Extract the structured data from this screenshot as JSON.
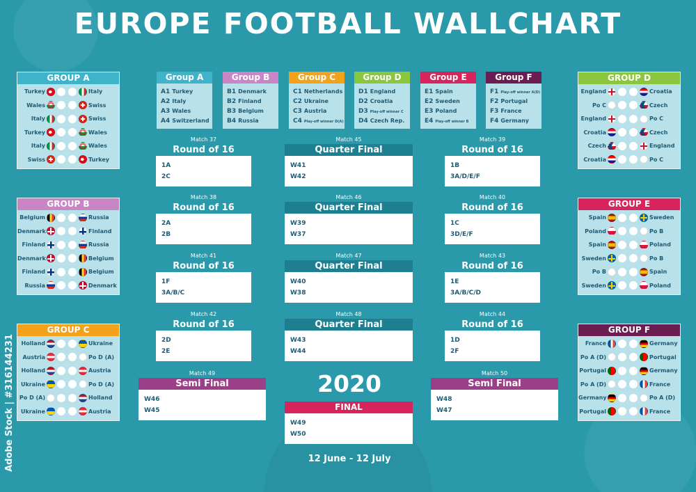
{
  "title": "EUROPE FOOTBALL WALLCHART",
  "year": "2020",
  "dates": "12 June - 12 July",
  "watermark": "Adobe Stock | #316144231",
  "colors": {
    "background": "#2a9aab",
    "teal_header": "#2a9aab",
    "group_a": "#3fb3c9",
    "group_b": "#c986c7",
    "group_c": "#f4a21c",
    "group_d": "#8cc63e",
    "group_e": "#d8245c",
    "group_f": "#6b1d52",
    "quarter": "#1d7f90",
    "semi": "#9c3f89",
    "final": "#d8245c"
  },
  "group_lists": [
    {
      "label": "Group A",
      "color": "#3fb3c9",
      "items": [
        {
          "code": "A1",
          "team": "Turkey"
        },
        {
          "code": "A2",
          "team": "Italy"
        },
        {
          "code": "A3",
          "team": "Wales"
        },
        {
          "code": "A4",
          "team": "Switzerland"
        }
      ]
    },
    {
      "label": "Group B",
      "color": "#c986c7",
      "items": [
        {
          "code": "B1",
          "team": "Denmark"
        },
        {
          "code": "B2",
          "team": "Finland"
        },
        {
          "code": "B3",
          "team": "Belgium"
        },
        {
          "code": "B4",
          "team": "Russia"
        }
      ]
    },
    {
      "label": "Group C",
      "color": "#f4a21c",
      "items": [
        {
          "code": "C1",
          "team": "Netherlands"
        },
        {
          "code": "C2",
          "team": "Ukraine"
        },
        {
          "code": "C3",
          "team": "Austria"
        },
        {
          "code": "C4",
          "team": "Play-off winner D(A)",
          "small": true
        }
      ]
    },
    {
      "label": "Group D",
      "color": "#8cc63e",
      "items": [
        {
          "code": "D1",
          "team": "England"
        },
        {
          "code": "D2",
          "team": "Croatia"
        },
        {
          "code": "D3",
          "team": "Play-off winner C",
          "small": true
        },
        {
          "code": "D4",
          "team": "Czech Rep."
        }
      ]
    },
    {
      "label": "Group E",
      "color": "#d8245c",
      "items": [
        {
          "code": "E1",
          "team": "Spain"
        },
        {
          "code": "E2",
          "team": "Sweden"
        },
        {
          "code": "E3",
          "team": "Poland"
        },
        {
          "code": "E4",
          "team": "Play-off winner B",
          "small": true
        }
      ]
    },
    {
      "label": "Group F",
      "color": "#6b1d52",
      "items": [
        {
          "code": "F1",
          "team": "Play-off winner A(D)",
          "small": true
        },
        {
          "code": "F2",
          "team": "Portugal"
        },
        {
          "code": "F3",
          "team": "France"
        },
        {
          "code": "F4",
          "team": "Germany"
        }
      ]
    }
  ],
  "side_groups": [
    {
      "label": "GROUP A",
      "color": "#3fb3c9",
      "matches": [
        {
          "home": "Turkey",
          "home_flag": "turkey",
          "away": "Italy",
          "away_flag": "italy"
        },
        {
          "home": "Wales",
          "home_flag": "wales",
          "away": "Swiss",
          "away_flag": "swiss"
        },
        {
          "home": "Italy",
          "home_flag": "italy",
          "away": "Swiss",
          "away_flag": "swiss"
        },
        {
          "home": "Turkey",
          "home_flag": "turkey",
          "away": "Wales",
          "away_flag": "wales"
        },
        {
          "home": "Italy",
          "home_flag": "italy",
          "away": "Wales",
          "away_flag": "wales"
        },
        {
          "home": "Swiss",
          "home_flag": "swiss",
          "away": "Turkey",
          "away_flag": "turkey"
        }
      ]
    },
    {
      "label": "GROUP B",
      "color": "#c986c7",
      "matches": [
        {
          "home": "Belgium",
          "home_flag": "belgium",
          "away": "Russia",
          "away_flag": "russia"
        },
        {
          "home": "Denmark",
          "home_flag": "denmark",
          "away": "Finland",
          "away_flag": "finland"
        },
        {
          "home": "Finland",
          "home_flag": "finland",
          "away": "Russia",
          "away_flag": "russia"
        },
        {
          "home": "Denmark",
          "home_flag": "denmark",
          "away": "Belgium",
          "away_flag": "belgium"
        },
        {
          "home": "Finland",
          "home_flag": "finland",
          "away": "Belgium",
          "away_flag": "belgium"
        },
        {
          "home": "Russia",
          "home_flag": "russia",
          "away": "Denmark",
          "away_flag": "denmark"
        }
      ]
    },
    {
      "label": "GROUP C",
      "color": "#f4a21c",
      "matches": [
        {
          "home": "Holland",
          "home_flag": "holland",
          "away": "Ukraine",
          "away_flag": "ukraine"
        },
        {
          "home": "Austria",
          "home_flag": "austria",
          "away": "Po D (A)",
          "away_flag": "blank"
        },
        {
          "home": "Holland",
          "home_flag": "holland",
          "away": "Austria",
          "away_flag": "austria"
        },
        {
          "home": "Ukraine",
          "home_flag": "ukraine",
          "away": "Po D (A)",
          "away_flag": "blank"
        },
        {
          "home": "Po D (A)",
          "home_flag": "blank",
          "away": "Holland",
          "away_flag": "holland"
        },
        {
          "home": "Ukraine",
          "home_flag": "ukraine",
          "away": "Austria",
          "away_flag": "austria"
        }
      ]
    },
    {
      "label": "GROUP D",
      "color": "#8cc63e",
      "matches": [
        {
          "home": "England",
          "home_flag": "england",
          "away": "Croatia",
          "away_flag": "croatia"
        },
        {
          "home": "Po C",
          "home_flag": "blank",
          "away": "Czech",
          "away_flag": "czech"
        },
        {
          "home": "England",
          "home_flag": "england",
          "away": "Po C",
          "away_flag": "blank"
        },
        {
          "home": "Croatia",
          "home_flag": "croatia",
          "away": "Czech",
          "away_flag": "czech"
        },
        {
          "home": "Czech",
          "home_flag": "czech",
          "away": "England",
          "away_flag": "england"
        },
        {
          "home": "Croatia",
          "home_flag": "croatia",
          "away": "Po C",
          "away_flag": "blank"
        }
      ]
    },
    {
      "label": "GROUP E",
      "color": "#d8245c",
      "matches": [
        {
          "home": "Spain",
          "home_flag": "spain",
          "away": "Sweden",
          "away_flag": "sweden"
        },
        {
          "home": "Poland",
          "home_flag": "poland",
          "away": "Po B",
          "away_flag": "blank"
        },
        {
          "home": "Spain",
          "home_flag": "spain",
          "away": "Poland",
          "away_flag": "poland"
        },
        {
          "home": "Sweden",
          "home_flag": "sweden",
          "away": "Po B",
          "away_flag": "blank"
        },
        {
          "home": "Po B",
          "home_flag": "blank",
          "away": "Spain",
          "away_flag": "spain"
        },
        {
          "home": "Sweden",
          "home_flag": "sweden",
          "away": "Poland",
          "away_flag": "poland"
        }
      ]
    },
    {
      "label": "GROUP F",
      "color": "#6b1d52",
      "matches": [
        {
          "home": "France",
          "home_flag": "france",
          "away": "Germany",
          "away_flag": "germany"
        },
        {
          "home": "Po A (D)",
          "home_flag": "blank",
          "away": "Portugal",
          "away_flag": "portugal"
        },
        {
          "home": "Portugal",
          "home_flag": "portugal",
          "away": "Germany",
          "away_flag": "germany"
        },
        {
          "home": "Po A (D)",
          "home_flag": "blank",
          "away": "France",
          "away_flag": "france"
        },
        {
          "home": "Germany",
          "home_flag": "germany",
          "away": "Po A (D)",
          "away_flag": "blank"
        },
        {
          "home": "Portugal",
          "home_flag": "portugal",
          "away": "France",
          "away_flag": "france"
        }
      ]
    }
  ],
  "matches": [
    {
      "label": "Match 37",
      "stage": "Round of 16",
      "lines": [
        "1A",
        "2C"
      ]
    },
    {
      "label": "Match 38",
      "stage": "Round of 16",
      "lines": [
        "2A",
        "2B"
      ]
    },
    {
      "label": "Match 41",
      "stage": "Round of 16",
      "lines": [
        "1F",
        "3A/B/C"
      ]
    },
    {
      "label": "Match 42",
      "stage": "Round of 16",
      "lines": [
        "2D",
        "2E"
      ]
    },
    {
      "label": "Match 45",
      "stage": "Quarter Final",
      "lines": [
        "W41",
        "W42"
      ]
    },
    {
      "label": "Match 46",
      "stage": "Quarter Final",
      "lines": [
        "W39",
        "W37"
      ]
    },
    {
      "label": "Match 47",
      "stage": "Quarter Final",
      "lines": [
        "W40",
        "W38"
      ]
    },
    {
      "label": "Match 48",
      "stage": "Quarter Final",
      "lines": [
        "W43",
        "W44"
      ]
    },
    {
      "label": "Match 39",
      "stage": "Round of 16",
      "lines": [
        "1B",
        "3A/D/E/F"
      ]
    },
    {
      "label": "Match 40",
      "stage": "Round of 16",
      "lines": [
        "1C",
        "3D/E/F"
      ]
    },
    {
      "label": "Match 43",
      "stage": "Round of 16",
      "lines": [
        "1E",
        "3A/B/C/D"
      ]
    },
    {
      "label": "Match 44",
      "stage": "Round of 16",
      "lines": [
        "1D",
        "2F"
      ]
    },
    {
      "label": "Match 49",
      "stage": "Semi Final",
      "lines": [
        "W46",
        "W45"
      ]
    },
    {
      "label": "Match 50",
      "stage": "Semi Final",
      "lines": [
        "W48",
        "W47"
      ]
    },
    {
      "label": "",
      "stage": "FINAL",
      "lines": [
        "W49",
        "W50"
      ]
    }
  ]
}
